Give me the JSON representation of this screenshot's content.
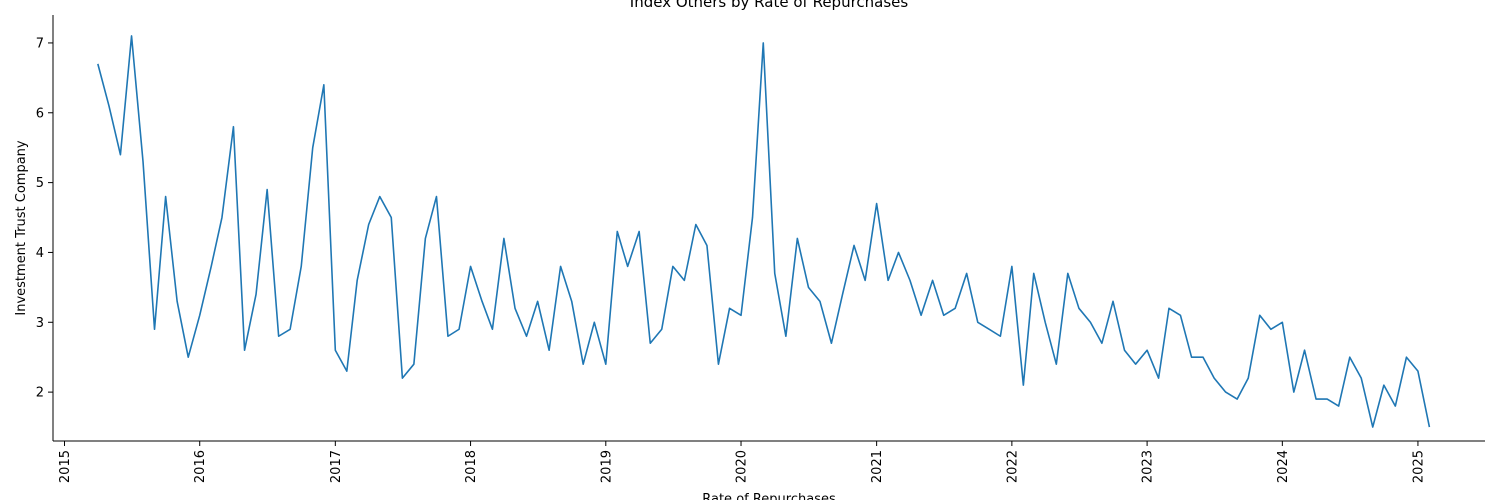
{
  "chart_data": {
    "type": "line",
    "title": "Index Others by Rate of Repurchases",
    "xlabel": "Rate of Repurchases",
    "ylabel": "Investment Trust Company",
    "x_ticks": [
      "2015",
      "2016",
      "2017",
      "2018",
      "2019",
      "2020",
      "2021",
      "2022",
      "2023",
      "2024",
      "2025"
    ],
    "y_ticks": [
      "2",
      "3",
      "4",
      "5",
      "6",
      "7"
    ],
    "xlim": [
      "2014-12-01",
      "2025-07-01"
    ],
    "ylim": [
      1.3,
      7.4
    ],
    "grid": false,
    "color": "#1f77b4",
    "series": [
      {
        "x": [
          "2015-04-01",
          "2015-05-01",
          "2015-06-01",
          "2015-07-01",
          "2015-08-01",
          "2015-09-01",
          "2015-10-01",
          "2015-11-01",
          "2015-12-01",
          "2016-01-01",
          "2016-02-01",
          "2016-03-01",
          "2016-04-01",
          "2016-05-01",
          "2016-06-01",
          "2016-07-01",
          "2016-08-01",
          "2016-09-01",
          "2016-10-01",
          "2016-11-01",
          "2016-12-01",
          "2017-01-01",
          "2017-02-01",
          "2017-03-01",
          "2017-04-01",
          "2017-05-01",
          "2017-06-01",
          "2017-07-01",
          "2017-08-01",
          "2017-09-01",
          "2017-10-01",
          "2017-11-01",
          "2017-12-01",
          "2018-01-01",
          "2018-02-01",
          "2018-03-01",
          "2018-04-01",
          "2018-05-01",
          "2018-06-01",
          "2018-07-01",
          "2018-08-01",
          "2018-09-01",
          "2018-10-01",
          "2018-11-01",
          "2018-12-01",
          "2019-01-01",
          "2019-02-01",
          "2019-03-01",
          "2019-04-01",
          "2019-05-01",
          "2019-06-01",
          "2019-07-01",
          "2019-08-01",
          "2019-09-01",
          "2019-10-01",
          "2019-11-01",
          "2019-12-01",
          "2020-01-01",
          "2020-02-01",
          "2020-03-01",
          "2020-04-01",
          "2020-05-01",
          "2020-06-01",
          "2020-07-01",
          "2020-08-01",
          "2020-09-01",
          "2020-10-01",
          "2020-11-01",
          "2020-12-01",
          "2021-01-01",
          "2021-02-01",
          "2021-03-01",
          "2021-04-01",
          "2021-05-01",
          "2021-06-01",
          "2021-07-01",
          "2021-08-01",
          "2021-09-01",
          "2021-10-01",
          "2021-11-01",
          "2021-12-01",
          "2022-01-01",
          "2022-02-01",
          "2022-03-01",
          "2022-04-01",
          "2022-05-01",
          "2022-06-01",
          "2022-07-01",
          "2022-08-01",
          "2022-09-01",
          "2022-10-01",
          "2022-11-01",
          "2022-12-01",
          "2023-01-01",
          "2023-02-01",
          "2023-03-01",
          "2023-04-01",
          "2023-05-01",
          "2023-06-01",
          "2023-07-01",
          "2023-08-01",
          "2023-09-01",
          "2023-10-01",
          "2023-11-01",
          "2023-12-01",
          "2024-01-01",
          "2024-02-01",
          "2024-03-01",
          "2024-04-01",
          "2024-05-01",
          "2024-06-01",
          "2024-07-01",
          "2024-08-01",
          "2024-09-01",
          "2024-10-01",
          "2024-11-01",
          "2024-12-01",
          "2025-01-01",
          "2025-02-01"
        ],
        "values": [
          6.7,
          6.1,
          5.4,
          7.1,
          5.3,
          2.9,
          4.8,
          3.3,
          2.5,
          3.1,
          3.8,
          4.5,
          5.8,
          2.6,
          3.4,
          4.9,
          2.8,
          2.9,
          3.8,
          5.5,
          6.4,
          2.6,
          2.3,
          3.6,
          4.4,
          4.8,
          4.5,
          2.2,
          2.4,
          4.2,
          4.8,
          2.8,
          2.9,
          3.8,
          3.3,
          2.9,
          4.2,
          3.2,
          2.8,
          3.3,
          2.6,
          3.8,
          3.3,
          2.4,
          3.0,
          2.4,
          4.3,
          3.8,
          4.3,
          2.7,
          2.9,
          3.8,
          3.6,
          4.4,
          4.1,
          2.4,
          3.2,
          3.1,
          4.5,
          7.0,
          3.7,
          2.8,
          4.2,
          3.5,
          3.3,
          2.7,
          3.4,
          4.1,
          3.6,
          4.7,
          3.6,
          4.0,
          3.6,
          3.1,
          3.6,
          3.1,
          3.2,
          3.7,
          3.0,
          2.9,
          2.8,
          3.8,
          2.1,
          3.7,
          3.0,
          2.4,
          3.7,
          3.2,
          3.0,
          2.7,
          3.3,
          2.6,
          2.4,
          2.6,
          2.2,
          3.2,
          3.1,
          2.5,
          2.5,
          2.2,
          2.0,
          1.9,
          2.2,
          3.1,
          2.9,
          3.0,
          2.0,
          2.6,
          1.9,
          1.9,
          1.8,
          2.5,
          2.2,
          1.5,
          2.1,
          1.8,
          2.5,
          2.3,
          1.5
        ]
      }
    ]
  }
}
